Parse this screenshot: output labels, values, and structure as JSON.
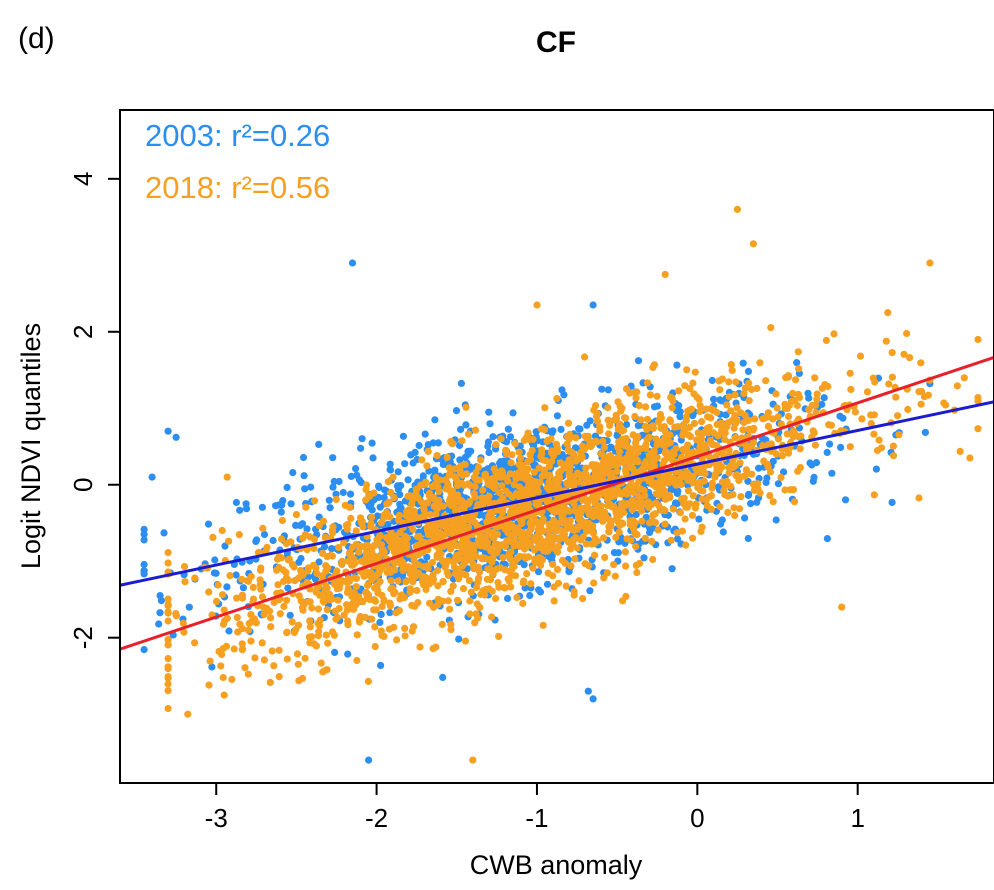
{
  "panel_label": "(d)",
  "chart_data": {
    "type": "scatter",
    "title": "CF",
    "xlabel": "CWB anomaly",
    "ylabel": "Logit NDVI quantiles",
    "xlim": [
      -3.6,
      1.85
    ],
    "ylim": [
      -3.9,
      4.9
    ],
    "xticks": [
      -3,
      -2,
      -1,
      0,
      1
    ],
    "yticks": [
      -2,
      0,
      2,
      4
    ],
    "grid": false,
    "annotations": [
      {
        "text": "2003: r²=0.26",
        "color": "#2b8ef0"
      },
      {
        "text": "2018: r²=0.56",
        "color": "#f5a020"
      }
    ],
    "series": [
      {
        "name": "2003",
        "color": "#2b8ef0",
        "fit": {
          "slope": 0.44,
          "intercept": 0.27,
          "color": "#1c1ccf"
        },
        "cloud": {
          "count": 1500,
          "x_mean": -1.1,
          "x_sd": 0.85,
          "x_range": [
            -3.45,
            1.45
          ],
          "residual_sd": 0.52
        },
        "points": [
          [
            -2.15,
            2.9
          ],
          [
            -2.05,
            -3.6
          ],
          [
            -3.4,
            0.1
          ],
          [
            -3.25,
            0.62
          ],
          [
            -3.3,
            0.7
          ],
          [
            -3.35,
            -1.45
          ],
          [
            -0.65,
            2.35
          ],
          [
            -0.65,
            -2.8
          ],
          [
            -0.68,
            -2.7
          ]
        ]
      },
      {
        "name": "2018",
        "color": "#f5a020",
        "fit": {
          "slope": 0.7,
          "intercept": 0.37,
          "color": "#e8202a"
        },
        "cloud": {
          "count": 2300,
          "x_mean": -1.05,
          "x_sd": 0.95,
          "x_range": [
            -3.3,
            1.75
          ],
          "residual_sd": 0.5
        },
        "points": [
          [
            0.25,
            3.6
          ],
          [
            0.35,
            3.15
          ],
          [
            -0.2,
            2.75
          ],
          [
            -1.4,
            -3.6
          ],
          [
            0.9,
            -1.6
          ],
          [
            1.45,
            2.9
          ],
          [
            -2.95,
            -2.75
          ],
          [
            -1.0,
            2.35
          ],
          [
            1.7,
            0.35
          ]
        ]
      }
    ]
  }
}
